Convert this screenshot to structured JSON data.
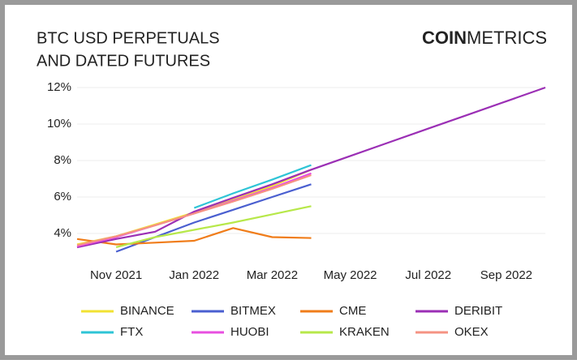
{
  "chart_data": {
    "type": "line",
    "title_lines": [
      "BTC USD PERPETUALS",
      "AND DATED FUTURES"
    ],
    "brand": [
      "COIN",
      "METRICS"
    ],
    "x": [
      "2021-10",
      "2021-11",
      "2021-12",
      "2022-01",
      "2022-02",
      "2022-03",
      "2022-04",
      "2022-05",
      "2022-06",
      "2022-07",
      "2022-08",
      "2022-09",
      "2022-10"
    ],
    "xlim": [
      "2021-10",
      "2022-10"
    ],
    "xticks": [
      {
        "value": "2021-11",
        "label": "Nov 2021"
      },
      {
        "value": "2022-01",
        "label": "Jan 2022"
      },
      {
        "value": "2022-03",
        "label": "Mar 2022"
      },
      {
        "value": "2022-05",
        "label": "May 2022"
      },
      {
        "value": "2022-07",
        "label": "Jul 2022"
      },
      {
        "value": "2022-09",
        "label": "Sep 2022"
      }
    ],
    "ylim": [
      2.8,
      12.4
    ],
    "yticks": [
      {
        "value": 4,
        "label": "4%"
      },
      {
        "value": 6,
        "label": "6%"
      },
      {
        "value": 8,
        "label": "8%"
      },
      {
        "value": 10,
        "label": "10%"
      },
      {
        "value": 12,
        "label": "12%"
      }
    ],
    "grid": true,
    "series": [
      {
        "name": "BINANCE",
        "color": "#f2e233",
        "values": [
          3.4,
          3.85,
          4.5,
          5.15,
          5.85,
          6.6,
          7.5,
          null,
          null,
          null,
          null,
          null,
          null
        ]
      },
      {
        "name": "BITMEX",
        "color": "#4a5fd0",
        "values": [
          null,
          3.0,
          3.8,
          4.6,
          5.3,
          6.0,
          6.7,
          null,
          null,
          null,
          null,
          null,
          null
        ]
      },
      {
        "name": "CME",
        "color": "#f07d1a",
        "values": [
          3.7,
          3.4,
          3.5,
          3.6,
          4.3,
          3.8,
          3.75,
          null,
          null,
          null,
          null,
          null,
          null
        ]
      },
      {
        "name": "DERIBIT",
        "color": "#9b2fb5",
        "values": [
          3.24,
          3.7,
          4.1,
          5.2,
          5.95,
          6.7,
          7.5,
          8.25,
          9.0,
          9.75,
          10.5,
          11.25,
          12.0
        ]
      },
      {
        "name": "FTX",
        "color": "#2ec4d6",
        "values": [
          null,
          null,
          null,
          5.4,
          6.2,
          6.95,
          7.75,
          null,
          null,
          null,
          null,
          null,
          null
        ]
      },
      {
        "name": "HUOBI",
        "color": "#e84fe0",
        "values": [
          3.3,
          3.8,
          4.45,
          5.1,
          5.8,
          6.5,
          7.3,
          null,
          null,
          null,
          null,
          null,
          null
        ]
      },
      {
        "name": "KRAKEN",
        "color": "#b7e84a",
        "values": [
          null,
          3.25,
          3.8,
          4.2,
          4.6,
          5.05,
          5.5,
          null,
          null,
          null,
          null,
          null,
          null
        ]
      },
      {
        "name": "OKEX",
        "color": "#f59383",
        "values": [
          3.35,
          3.85,
          4.45,
          5.1,
          5.75,
          6.45,
          7.2,
          null,
          null,
          null,
          null,
          null,
          null
        ]
      }
    ]
  }
}
